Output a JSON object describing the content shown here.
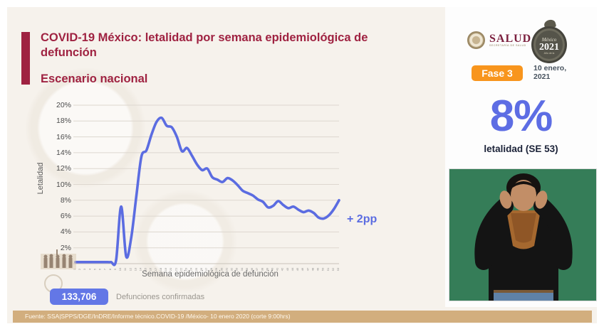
{
  "header": {
    "title": "COVID-19 México: letalidad por semana epidemiológica de defunción",
    "subtitle": "Escenario nacional"
  },
  "top_right": {
    "salud_logo": {
      "label": "SALUD",
      "sublabel": "SECRETARÍA DE SALUD",
      "emblem_icon": "eagle-seal"
    },
    "mexico2021_logo": {
      "top_label": "México",
      "year": "2021",
      "sublabel": "Año de la",
      "emblem_icon": "quetzalcoatl-ring"
    },
    "phase_badge": "Fase 3",
    "date_line1": "10 enero,",
    "date_line2": "2021"
  },
  "stat": {
    "value": "8%",
    "label": "letalidad (SE 53)"
  },
  "deaths": {
    "value": "133,706",
    "label": "Defunciones confirmadas"
  },
  "footer": {
    "source": "Fuente: SSA|SPPS/DGE/InDRE/Informe técnico.COVID-19 /México- 10 enero 2020 (corte 9:00hrs)"
  },
  "colors": {
    "accent_line": "#5b6ce1",
    "accent_badge": "#6377e6",
    "maroon": "#9f2241",
    "phase_orange": "#f8951d",
    "footer_tan": "#d2ae7e",
    "interpreter_green": "#357d58",
    "slide_cream": "#f6f2ec"
  },
  "chart_data": {
    "type": "line",
    "title": "",
    "xlabel": "Semana epidemiológica de defunción",
    "ylabel": "Letalidad",
    "x": [
      1,
      2,
      3,
      4,
      5,
      6,
      7,
      8,
      9,
      10,
      11,
      12,
      13,
      14,
      15,
      16,
      17,
      18,
      19,
      20,
      21,
      22,
      23,
      24,
      25,
      26,
      27,
      28,
      29,
      30,
      31,
      32,
      33,
      34,
      35,
      36,
      37,
      38,
      39,
      40,
      41,
      42,
      43,
      44,
      45,
      46,
      47,
      48,
      49,
      50,
      51,
      52,
      53
    ],
    "values": [
      0.2,
      0.2,
      0.2,
      0.2,
      0.2,
      0.2,
      0.2,
      0.2,
      0.4,
      7.2,
      0.9,
      3.3,
      8.5,
      13.5,
      14.3,
      16.3,
      17.9,
      18.4,
      17.4,
      17.2,
      16.0,
      14.2,
      14.6,
      13.6,
      12.5,
      11.8,
      12.0,
      10.9,
      10.6,
      10.3,
      10.8,
      10.5,
      9.9,
      9.2,
      8.9,
      8.6,
      8.1,
      7.8,
      7.1,
      7.3,
      7.9,
      7.4,
      7.0,
      7.2,
      6.8,
      6.5,
      6.7,
      6.4,
      5.8,
      5.7,
      6.1,
      6.9,
      8.0
    ],
    "y_ticks": [
      2,
      4,
      6,
      8,
      10,
      12,
      14,
      16,
      18,
      20
    ],
    "y_tick_suffix": "%",
    "ylim": [
      0,
      21
    ],
    "grid": true,
    "legend": "none",
    "line_color": "#5b6ce1",
    "end_annotation": "+ 2pp"
  }
}
